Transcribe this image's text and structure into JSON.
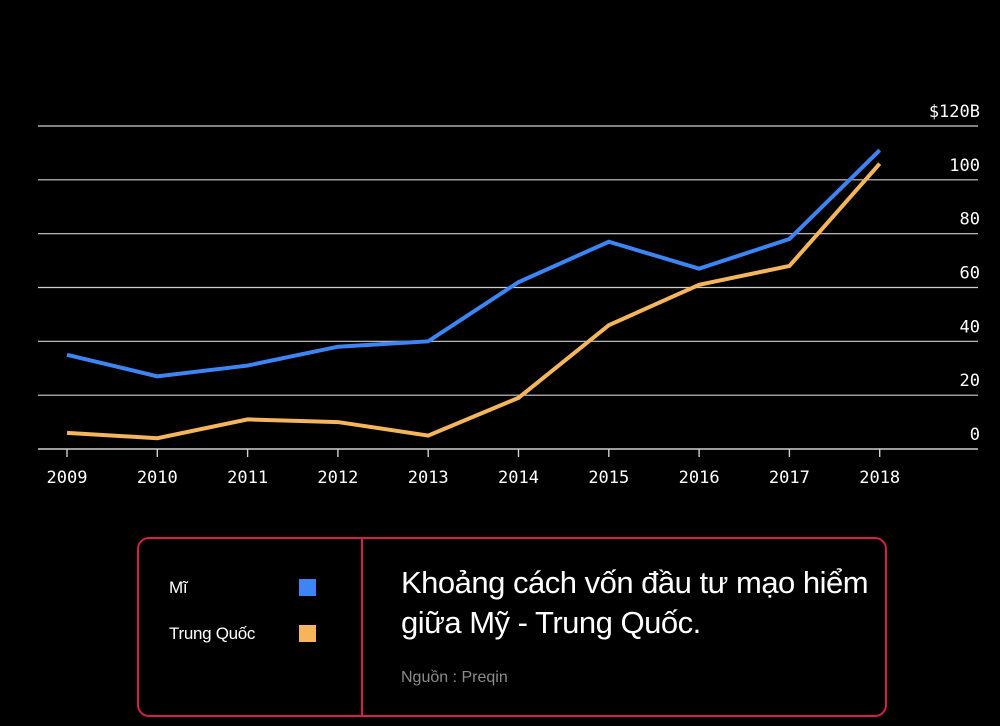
{
  "chart_data": {
    "type": "line",
    "title": "Khoảng cách vốn đầu tư mạo hiểm giữa Mỹ - Trung Quốc.",
    "source": "Nguồn : Preqin",
    "x": [
      "2009",
      "2010",
      "2011",
      "2012",
      "2013",
      "2014",
      "2015",
      "2016",
      "2017",
      "2018"
    ],
    "y_ticks": [
      "0",
      "20",
      "40",
      "60",
      "80",
      "100",
      "$120B"
    ],
    "ylim": [
      0,
      120
    ],
    "grid": true,
    "series": [
      {
        "name": "Mĩ",
        "color": "#3d84f4",
        "values": [
          35,
          27,
          31,
          38,
          40,
          62,
          77,
          67,
          78,
          111
        ]
      },
      {
        "name": "Trung Quốc",
        "color": "#f5b55a",
        "values": [
          6,
          4,
          11,
          10,
          5,
          19,
          46,
          61,
          68,
          106
        ]
      }
    ]
  }
}
